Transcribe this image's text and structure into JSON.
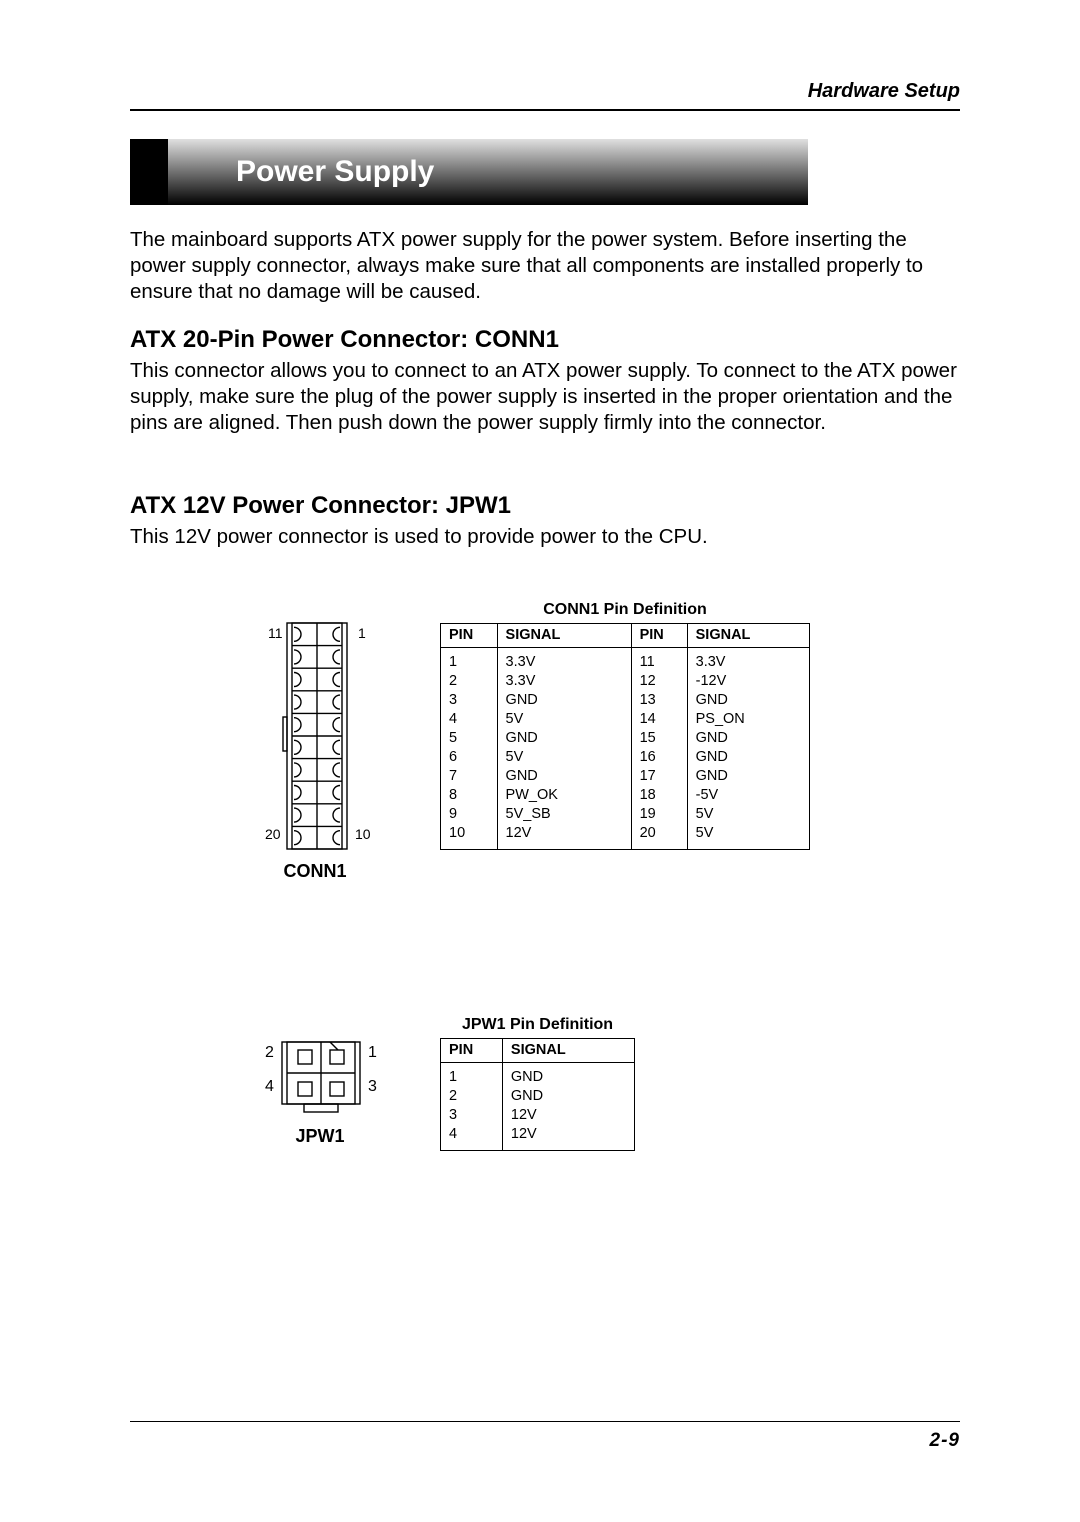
{
  "header": {
    "chapter": "Hardware Setup"
  },
  "title": "Power Supply",
  "intro": "The mainboard supports ATX power supply for the power system.  Before inserting the power supply connector, always make sure that all components are installed properly to ensure that no damage will be caused.",
  "section1": {
    "heading": "ATX 20-Pin Power Connector: CONN1",
    "body": "This connector allows you to connect to an ATX power supply.  To connect to the ATX power supply, make sure the plug of the power supply is inserted in the proper orientation and the pins are aligned.  Then push down the power supply firmly into the connector."
  },
  "section2": {
    "heading": "ATX 12V Power Connector: JPW1",
    "body": "This 12V power connector is used to provide power to the CPU."
  },
  "conn1": {
    "caption": "CONN1",
    "corner_tl": "11",
    "corner_tr": "1",
    "corner_bl": "20",
    "corner_br": "10",
    "table_title": "CONN1 Pin Definition",
    "th_pin": "PIN",
    "th_signal": "SIGNAL",
    "rows": [
      {
        "p1": "1",
        "s1": "3.3V",
        "p2": "11",
        "s2": "3.3V"
      },
      {
        "p1": "2",
        "s1": "3.3V",
        "p2": "12",
        "s2": "-12V"
      },
      {
        "p1": "3",
        "s1": "GND",
        "p2": "13",
        "s2": "GND"
      },
      {
        "p1": "4",
        "s1": "5V",
        "p2": "14",
        "s2": "PS_ON"
      },
      {
        "p1": "5",
        "s1": "GND",
        "p2": "15",
        "s2": "GND"
      },
      {
        "p1": "6",
        "s1": "5V",
        "p2": "16",
        "s2": "GND"
      },
      {
        "p1": "7",
        "s1": "GND",
        "p2": "17",
        "s2": "GND"
      },
      {
        "p1": "8",
        "s1": "PW_OK",
        "p2": "18",
        "s2": "-5V"
      },
      {
        "p1": "9",
        "s1": "5V_SB",
        "p2": "19",
        "s2": "5V"
      },
      {
        "p1": "10",
        "s1": "12V",
        "p2": "20",
        "s2": "5V"
      }
    ]
  },
  "jpw1": {
    "caption": "JPW1",
    "corner_tl": "2",
    "corner_tr": "1",
    "corner_bl": "4",
    "corner_br": "3",
    "table_title": "JPW1 Pin Definition",
    "th_pin": "PIN",
    "th_signal": "SIGNAL",
    "rows": [
      {
        "p": "1",
        "s": "GND"
      },
      {
        "p": "2",
        "s": "GND"
      },
      {
        "p": "3",
        "s": "12V"
      },
      {
        "p": "4",
        "s": "12V"
      }
    ]
  },
  "footer": {
    "page": "2-9"
  },
  "style": {
    "page_bg": "#ffffff",
    "text_color": "#000000",
    "rule_color": "#000000",
    "grad_top": "#e0e0e0",
    "grad_bottom": "#000000",
    "title_fontsize_pt": 22,
    "body_fontsize_pt": 15,
    "h2_fontsize_pt": 18,
    "table_fontsize_pt": 11
  }
}
